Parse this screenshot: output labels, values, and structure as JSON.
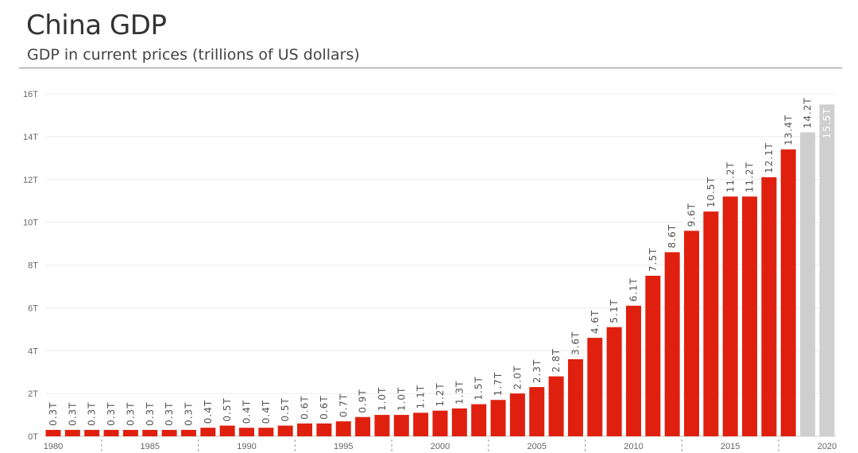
{
  "header": {
    "title": "China GDP",
    "subtitle": "GDP in current prices (trillions of US dollars)"
  },
  "chart_data": {
    "type": "bar",
    "title": "China GDP",
    "subtitle": "GDP in current prices (trillions of US dollars)",
    "xlabel": "",
    "ylabel": "",
    "ylim": [
      0,
      16
    ],
    "y_ticks": [
      0,
      2,
      4,
      6,
      8,
      10,
      12,
      14,
      16
    ],
    "y_tick_labels": [
      "0T",
      "2T",
      "4T",
      "6T",
      "8T",
      "10T",
      "12T",
      "14T",
      "16T"
    ],
    "x_tick_labels": [
      "1980",
      "1985",
      "1990",
      "1995",
      "2000",
      "2005",
      "2010",
      "2015",
      "2020"
    ],
    "x_tick_years": [
      1980,
      1985,
      1990,
      1995,
      2000,
      2005,
      2010,
      2015,
      2020
    ],
    "grid": true,
    "categories": [
      1980,
      1981,
      1982,
      1983,
      1984,
      1985,
      1986,
      1987,
      1988,
      1989,
      1990,
      1991,
      1992,
      1993,
      1994,
      1995,
      1996,
      1997,
      1998,
      1999,
      2000,
      2001,
      2002,
      2003,
      2004,
      2005,
      2006,
      2007,
      2008,
      2009,
      2010,
      2011,
      2012,
      2013,
      2014,
      2015,
      2016,
      2017,
      2018,
      2019,
      2020
    ],
    "values": [
      0.3,
      0.3,
      0.3,
      0.3,
      0.3,
      0.3,
      0.3,
      0.3,
      0.4,
      0.5,
      0.4,
      0.4,
      0.5,
      0.6,
      0.6,
      0.7,
      0.9,
      1.0,
      1.0,
      1.1,
      1.2,
      1.3,
      1.5,
      1.7,
      2.0,
      2.3,
      2.8,
      3.6,
      4.6,
      5.1,
      6.1,
      7.5,
      8.6,
      9.6,
      10.5,
      11.2,
      11.2,
      12.1,
      13.4,
      14.2,
      15.5
    ],
    "labels": [
      "0.3T",
      "0.3T",
      "0.3T",
      "0.3T",
      "0.3T",
      "0.3T",
      "0.3T",
      "0.3T",
      "0.4T",
      "0.5T",
      "0.4T",
      "0.4T",
      "0.5T",
      "0.6T",
      "0.6T",
      "0.7T",
      "0.9T",
      "1.0T",
      "1.0T",
      "1.1T",
      "1.2T",
      "1.3T",
      "1.5T",
      "1.7T",
      "2.0T",
      "2.3T",
      "2.8T",
      "3.6T",
      "4.6T",
      "5.1T",
      "6.1T",
      "7.5T",
      "8.6T",
      "9.6T",
      "10.5T",
      "11.2T",
      "11.2T",
      "12.1T",
      "13.4T",
      "14.2T",
      "15.5T"
    ],
    "bar_colors": {
      "actual": "#e0200f",
      "estimate": "#cfcfcf"
    },
    "estimate_years": [
      2019,
      2020
    ]
  }
}
